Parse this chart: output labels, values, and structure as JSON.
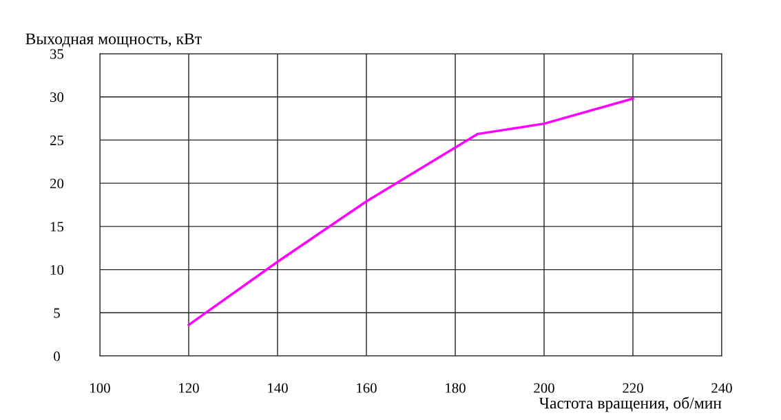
{
  "chart_data": {
    "type": "line",
    "ylabel": "Выходная мощность, кВт",
    "xlabel": "Частота вращения, об/мин",
    "x": [
      120,
      140,
      160,
      185,
      200,
      220
    ],
    "series": [
      {
        "color": "#ff00ff",
        "values": [
          3.6,
          10.9,
          17.9,
          25.7,
          26.9,
          29.8
        ]
      }
    ],
    "xlim": [
      100,
      240
    ],
    "xticks": [
      100,
      120,
      140,
      160,
      180,
      200,
      220,
      240
    ],
    "ylim": [
      0,
      35
    ],
    "yticks": [
      0,
      5,
      10,
      15,
      20,
      25,
      30,
      35
    ],
    "grid": true,
    "legend": false,
    "marker": "none",
    "line_style": "solid"
  }
}
